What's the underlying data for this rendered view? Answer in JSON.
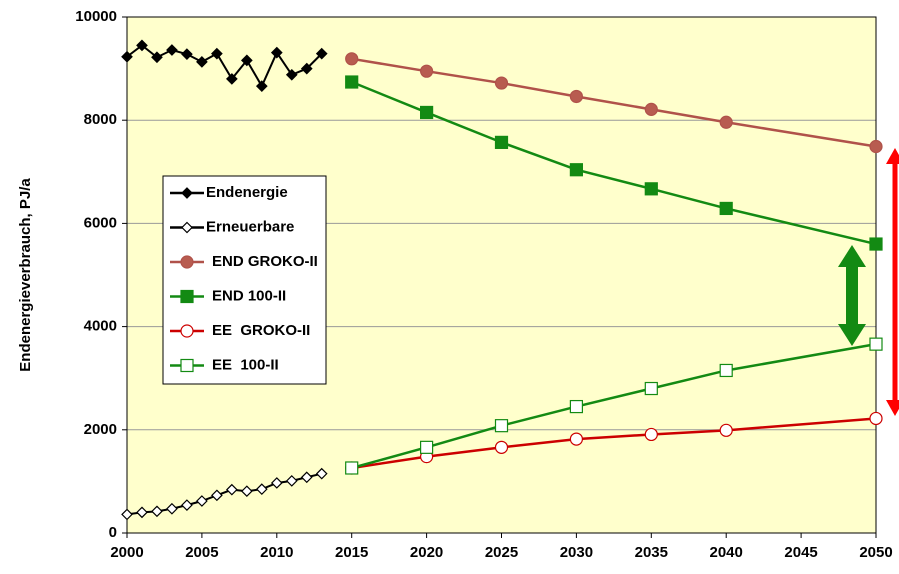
{
  "chart_data": {
    "type": "line",
    "ylabel": "Endenergieverbrauch, PJ/a",
    "xlim": [
      2000,
      2050
    ],
    "xticks": [
      2000,
      2005,
      2010,
      2015,
      2020,
      2025,
      2030,
      2035,
      2040,
      2045,
      2050
    ],
    "ylim": [
      0,
      10000
    ],
    "yticks": [
      0,
      2000,
      4000,
      6000,
      8000,
      10000
    ],
    "grid": true,
    "legend": true,
    "background": "#ffffcc",
    "series": [
      {
        "name": "Endenergie",
        "color": "#000000",
        "marker": "diamond",
        "marker_fill": "#000000",
        "x": [
          2000,
          2001,
          2002,
          2003,
          2004,
          2005,
          2006,
          2007,
          2008,
          2009,
          2010,
          2011,
          2012,
          2013
        ],
        "values": [
          9230,
          9450,
          9220,
          9360,
          9280,
          9130,
          9290,
          8800,
          9160,
          8660,
          9310,
          8880,
          9000,
          9290
        ]
      },
      {
        "name": "Erneuerbare",
        "color": "#000000",
        "marker": "diamond",
        "marker_fill": "#ffffff",
        "x": [
          2000,
          2001,
          2002,
          2003,
          2004,
          2005,
          2006,
          2007,
          2008,
          2009,
          2010,
          2011,
          2012,
          2013
        ],
        "values": [
          360,
          400,
          420,
          470,
          540,
          620,
          730,
          840,
          810,
          850,
          970,
          1010,
          1080,
          1150
        ]
      },
      {
        "name": "END GROKO-II",
        "color": "#b0524a",
        "marker": "circle",
        "marker_fill": "#b85c50",
        "x": [
          2015,
          2020,
          2025,
          2030,
          2035,
          2040,
          2050
        ],
        "values": [
          9190,
          8950,
          8720,
          8460,
          8210,
          7960,
          7490
        ]
      },
      {
        "name": "END 100-II",
        "color": "#138a13",
        "marker": "square",
        "marker_fill": "#138a13",
        "x": [
          2015,
          2020,
          2025,
          2030,
          2035,
          2040,
          2050
        ],
        "values": [
          8740,
          8150,
          7570,
          7040,
          6670,
          6290,
          5600
        ]
      },
      {
        "name": "EE  GROKO-II",
        "color": "#cc0000",
        "marker": "circle",
        "marker_fill": "#ffffff",
        "x": [
          2015,
          2020,
          2025,
          2030,
          2035,
          2040,
          2050
        ],
        "values": [
          1260,
          1480,
          1660,
          1820,
          1910,
          1990,
          2220
        ]
      },
      {
        "name": "EE  100-II",
        "color": "#138a13",
        "marker": "square",
        "marker_fill": "#ffffff",
        "x": [
          2015,
          2020,
          2025,
          2030,
          2035,
          2040,
          2050
        ],
        "values": [
          1260,
          1660,
          2080,
          2450,
          2800,
          3150,
          3660
        ]
      }
    ]
  }
}
